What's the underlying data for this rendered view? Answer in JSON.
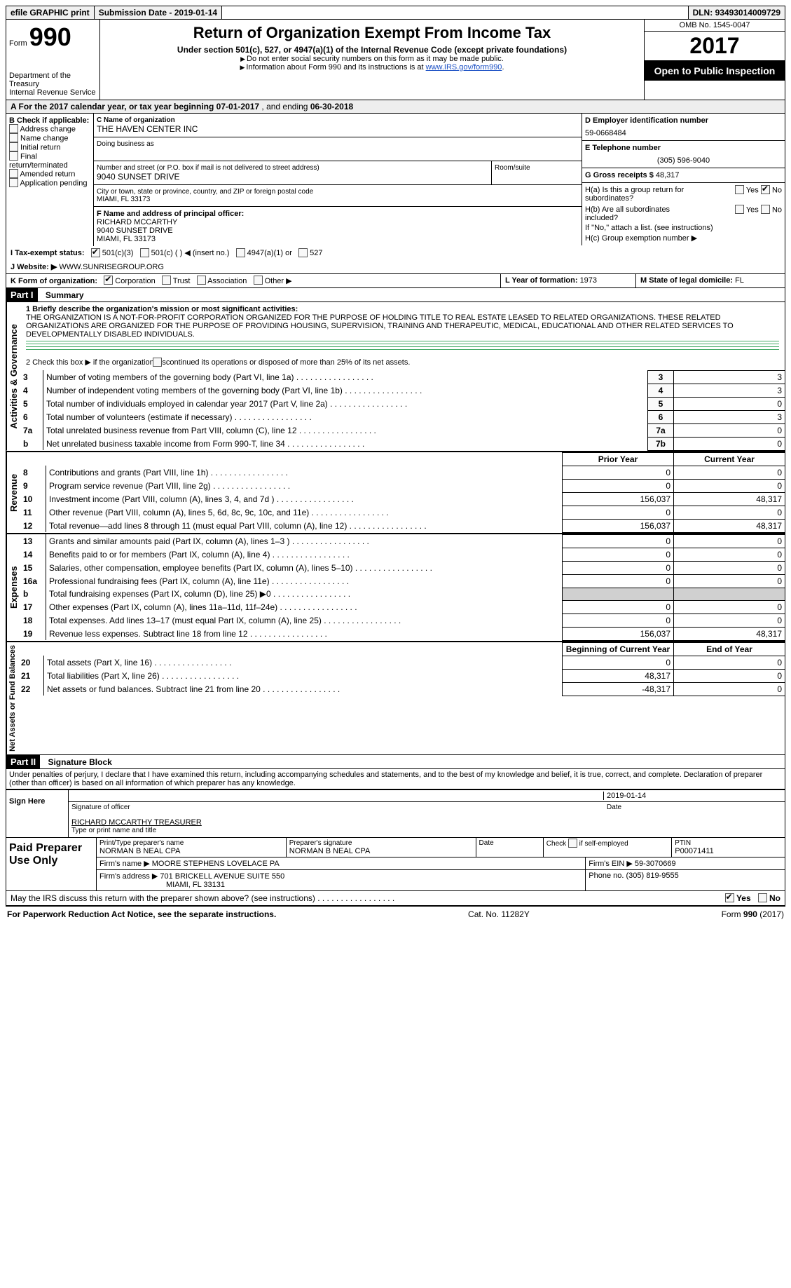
{
  "top_bar": {
    "efile": "efile GRAPHIC print",
    "subm_label": "Submission Date - ",
    "subm_date": "2019-01-14",
    "dln_label": "DLN: ",
    "dln": "93493014009729"
  },
  "header": {
    "form_word": "Form",
    "form_no": "990",
    "dept1": "Department of the Treasury",
    "dept2": "Internal Revenue Service",
    "title": "Return of Organization Exempt From Income Tax",
    "sub": "Under section 501(c), 527, or 4947(a)(1) of the Internal Revenue Code (except private foundations)",
    "note1": "Do not enter social security numbers on this form as it may be made public.",
    "note2_a": "Information about Form 990 and its instructions is at ",
    "note2_link": "www.IRS.gov/form990",
    "omb": "OMB No. 1545-0047",
    "year": "2017",
    "open": "Open to Public Inspection"
  },
  "row_a": {
    "text_a": "A   For the 2017 calendar year, or tax year beginning ",
    "begin": "07-01-2017",
    "mid": "   , and ending ",
    "end": "06-30-2018"
  },
  "col_b": {
    "title": "B Check if applicable:",
    "items": [
      "Address change",
      "Name change",
      "Initial return",
      "Final return/terminated",
      "Amended return",
      "Application pending"
    ]
  },
  "box_c": {
    "lab_name": "C Name of organization",
    "org": "THE HAVEN CENTER INC",
    "dba_lab": "Doing business as",
    "addr_lab": "Number and street (or P.O. box if mail is not delivered to street address)",
    "addr": "9040 SUNSET DRIVE",
    "room_lab": "Room/suite",
    "city_lab": "City or town, state or province, country, and ZIP or foreign postal code",
    "city": "MIAMI, FL  33173"
  },
  "box_f": {
    "lab": "F Name and address of principal officer:",
    "l1": "RICHARD MCCARTHY",
    "l2": "9040 SUNSET DRIVE",
    "l3": "MIAMI, FL  33173"
  },
  "box_d": {
    "lab": "D Employer identification number",
    "val": "59-0668484"
  },
  "box_e": {
    "lab": "E Telephone number",
    "val": "(305) 596-9040"
  },
  "box_g": {
    "lab": "G Gross receipts $ ",
    "val": "48,317"
  },
  "box_h": {
    "ha": "H(a)  Is this a group return for subordinates?",
    "hb": "H(b)  Are all subordinates included?",
    "hb_note": "If \"No,\" attach a list. (see instructions)",
    "hc": "H(c)  Group exemption number ▶",
    "yes": "Yes",
    "no": "No"
  },
  "row_i": {
    "lab": "I  Tax-exempt status:",
    "o1": "501(c)(3)",
    "o2": "501(c) (  ) ◀ (insert no.)",
    "o3": "4947(a)(1) or",
    "o4": "527"
  },
  "row_j": {
    "lab": "J  Website: ▶",
    "val": "WWW.SUNRISEGROUP.ORG"
  },
  "row_k": {
    "lab": "K Form of organization:",
    "o1": "Corporation",
    "o2": "Trust",
    "o3": "Association",
    "o4": "Other ▶"
  },
  "row_l": {
    "lab": "L Year of formation: ",
    "val": "1973"
  },
  "row_m": {
    "lab": "M State of legal domicile: ",
    "val": "FL"
  },
  "part1": {
    "band": "Part I",
    "title": "Summary",
    "side_ag": "Activities & Governance",
    "side_rev": "Revenue",
    "side_exp": "Expenses",
    "side_na": "Net Assets or Fund Balances",
    "l1_lab": "1  Briefly describe the organization's mission or most significant activities:",
    "l1_text": "THE ORGANIZATION IS A NOT-FOR-PROFIT CORPORATION ORGANIZED FOR THE PURPOSE OF HOLDING TITLE TO REAL ESTATE LEASED TO RELATED ORGANIZATIONS. THESE RELATED ORGANIZATIONS ARE ORGANIZED FOR THE PURPOSE OF PROVIDING HOUSING, SUPERVISION, TRAINING AND THERAPEUTIC, MEDICAL, EDUCATIONAL AND OTHER RELATED SERVICES TO DEVELOPMENTALLY DISABLED INDIVIDUALS.",
    "l2": "2   Check this box ▶        if the organization discontinued its operations or disposed of more than 25% of its net assets.",
    "rows_ag": [
      {
        "n": "3",
        "t": "Number of voting members of the governing body (Part VI, line 1a)",
        "k": "3",
        "v": "3"
      },
      {
        "n": "4",
        "t": "Number of independent voting members of the governing body (Part VI, line 1b)",
        "k": "4",
        "v": "3"
      },
      {
        "n": "5",
        "t": "Total number of individuals employed in calendar year 2017 (Part V, line 2a)",
        "k": "5",
        "v": "0"
      },
      {
        "n": "6",
        "t": "Total number of volunteers (estimate if necessary)",
        "k": "6",
        "v": "3"
      },
      {
        "n": "7a",
        "t": "Total unrelated business revenue from Part VIII, column (C), line 12",
        "k": "7a",
        "v": "0"
      },
      {
        "n": "b",
        "t": "Net unrelated business taxable income from Form 990-T, line 34",
        "k": "7b",
        "v": "0"
      }
    ],
    "hdr_py": "Prior Year",
    "hdr_cy": "Current Year",
    "rows_rev": [
      {
        "n": "8",
        "t": "Contributions and grants (Part VIII, line 1h)",
        "py": "0",
        "cy": "0"
      },
      {
        "n": "9",
        "t": "Program service revenue (Part VIII, line 2g)",
        "py": "0",
        "cy": "0"
      },
      {
        "n": "10",
        "t": "Investment income (Part VIII, column (A), lines 3, 4, and 7d )",
        "py": "156,037",
        "cy": "48,317"
      },
      {
        "n": "11",
        "t": "Other revenue (Part VIII, column (A), lines 5, 6d, 8c, 9c, 10c, and 11e)",
        "py": "0",
        "cy": "0"
      },
      {
        "n": "12",
        "t": "Total revenue—add lines 8 through 11 (must equal Part VIII, column (A), line 12)",
        "py": "156,037",
        "cy": "48,317"
      }
    ],
    "rows_exp": [
      {
        "n": "13",
        "t": "Grants and similar amounts paid (Part IX, column (A), lines 1–3 )",
        "py": "0",
        "cy": "0"
      },
      {
        "n": "14",
        "t": "Benefits paid to or for members (Part IX, column (A), line 4)",
        "py": "0",
        "cy": "0"
      },
      {
        "n": "15",
        "t": "Salaries, other compensation, employee benefits (Part IX, column (A), lines 5–10)",
        "py": "0",
        "cy": "0"
      },
      {
        "n": "16a",
        "t": "Professional fundraising fees (Part IX, column (A), line 11e)",
        "py": "0",
        "cy": "0"
      },
      {
        "n": "b",
        "t": "Total fundraising expenses (Part IX, column (D), line 25) ▶0",
        "py": "",
        "cy": "",
        "shade": true
      },
      {
        "n": "17",
        "t": "Other expenses (Part IX, column (A), lines 11a–11d, 11f–24e)",
        "py": "0",
        "cy": "0"
      },
      {
        "n": "18",
        "t": "Total expenses. Add lines 13–17 (must equal Part IX, column (A), line 25)",
        "py": "0",
        "cy": "0"
      },
      {
        "n": "19",
        "t": "Revenue less expenses. Subtract line 18 from line 12",
        "py": "156,037",
        "cy": "48,317"
      }
    ],
    "hdr_bcy": "Beginning of Current Year",
    "hdr_eoy": "End of Year",
    "rows_na": [
      {
        "n": "20",
        "t": "Total assets (Part X, line 16)",
        "py": "0",
        "cy": "0"
      },
      {
        "n": "21",
        "t": "Total liabilities (Part X, line 26)",
        "py": "48,317",
        "cy": "0"
      },
      {
        "n": "22",
        "t": "Net assets or fund balances. Subtract line 21 from line 20",
        "py": "-48,317",
        "cy": "0"
      }
    ]
  },
  "part2": {
    "band": "Part II",
    "title": "Signature Block",
    "decl": "Under penalties of perjury, I declare that I have examined this return, including accompanying schedules and statements, and to the best of my knowledge and belief, it is true, correct, and complete. Declaration of preparer (other than officer) is based on all information of which preparer has any knowledge.",
    "sign_here": "Sign Here",
    "sig_date": "2019-01-14",
    "sig_lab1": "Signature of officer",
    "sig_lab2": "Date",
    "officer": "RICHARD MCCARTHY TREASURER",
    "officer_lab": "Type or print name and title"
  },
  "paid": {
    "title": "Paid Preparer Use Only",
    "r1": {
      "c1_lab": "Print/Type preparer's name",
      "c1": "NORMAN B NEAL CPA",
      "c2_lab": "Preparer's signature",
      "c2": "NORMAN B NEAL CPA",
      "c3_lab": "Date",
      "c4_lab": "Check        if self-employed",
      "c5_lab": "PTIN",
      "c5": "P00071411"
    },
    "r2": {
      "lab": "Firm's name      ▶",
      "val": "MOORE STEPHENS LOVELACE PA",
      "ein_lab": "Firm's EIN ▶",
      "ein": "59-3070669"
    },
    "r3": {
      "lab": "Firm's address ▶",
      "val1": "701 BRICKELL AVENUE SUITE 550",
      "val2": "MIAMI, FL  33131",
      "ph_lab": "Phone no. ",
      "ph": "(305) 819-9555"
    }
  },
  "discuss": {
    "q": "May the IRS discuss this return with the preparer shown above? (see instructions)",
    "yes": "Yes",
    "no": "No"
  },
  "footer": {
    "left": "For Paperwork Reduction Act Notice, see the separate instructions.",
    "mid": "Cat. No. 11282Y",
    "right_a": "Form ",
    "right_b": "990",
    "right_c": " (2017)"
  }
}
